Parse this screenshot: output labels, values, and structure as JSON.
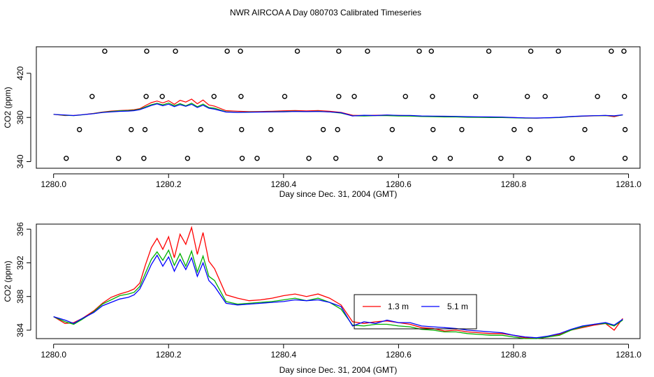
{
  "page_title": "NWR AIRCOA A  Day 080703  Calibrated Timeseries",
  "chart_data": [
    {
      "type": "scatter",
      "xlabel": "Day since Dec. 31, 2004 (GMT)",
      "ylabel": "CO2 (ppm)",
      "xlim": [
        1279.97,
        1281.02
      ],
      "ylim": [
        334,
        444
      ],
      "xticks": [
        1280.0,
        1280.2,
        1280.4,
        1280.6,
        1280.8,
        1281.0
      ],
      "xtick_labels": [
        "1280.0",
        "1280.2",
        "1280.4",
        "1280.6",
        "1280.8",
        "1281.0"
      ],
      "yticks": [
        340,
        380,
        420
      ],
      "ytick_labels": [
        "340",
        "380",
        "420"
      ],
      "markers": {
        "y": [
          343,
          369,
          399,
          440
        ],
        "x": [
          [
            1280.022,
            1280.113,
            1280.157,
            1280.233,
            1280.328,
            1280.354,
            1280.444,
            1280.491,
            1280.568,
            1280.663,
            1280.69,
            1280.778,
            1280.826,
            1280.902,
            1280.994
          ],
          [
            1280.045,
            1280.135,
            1280.159,
            1280.256,
            1280.327,
            1280.378,
            1280.469,
            1280.494,
            1280.589,
            1280.66,
            1280.71,
            1280.801,
            1280.829,
            1280.924,
            1280.994
          ],
          [
            1280.067,
            1280.161,
            1280.189,
            1280.279,
            1280.326,
            1280.402,
            1280.496,
            1280.523,
            1280.612,
            1280.659,
            1280.734,
            1280.824,
            1280.855,
            1280.946,
            1280.993
          ],
          [
            1280.089,
            1280.162,
            1280.212,
            1280.302,
            1280.325,
            1280.424,
            1280.496,
            1280.546,
            1280.636,
            1280.657,
            1280.757,
            1280.83,
            1280.878,
            1280.97,
            1280.992
          ]
        ]
      },
      "series": [
        {
          "name": "1.3 m",
          "color": "#ff0000"
        },
        {
          "name": "5.1 m",
          "color": "#0000ff"
        }
      ]
    },
    {
      "type": "line",
      "xlabel": "Day since Dec. 31, 2004 (GMT)",
      "ylabel": "CO2 (ppm)",
      "xlim": [
        1279.97,
        1281.02
      ],
      "ylim": [
        383.0,
        396.6
      ],
      "xticks": [
        1280.0,
        1280.2,
        1280.4,
        1280.6,
        1280.8,
        1281.0
      ],
      "xtick_labels": [
        "1280.0",
        "1280.2",
        "1280.4",
        "1280.6",
        "1280.8",
        "1281.0"
      ],
      "yticks": [
        384,
        388,
        392,
        396
      ],
      "ytick_labels": [
        "384",
        "388",
        "392",
        "396"
      ],
      "legend": {
        "position": "right-center",
        "entries": [
          {
            "name": "1.3 m",
            "color": "#ff0000"
          },
          {
            "name": "5.1 m",
            "color": "#0000ff"
          }
        ]
      },
      "series": [
        {
          "name": "1.3 m",
          "color": "#ff0000",
          "x": [
            1280.0,
            1280.02,
            1280.035,
            1280.05,
            1280.07,
            1280.085,
            1280.1,
            1280.115,
            1280.13,
            1280.14,
            1280.15,
            1280.16,
            1280.17,
            1280.18,
            1280.19,
            1280.2,
            1280.21,
            1280.22,
            1280.23,
            1280.24,
            1280.25,
            1280.26,
            1280.27,
            1280.28,
            1280.3,
            1280.32,
            1280.34,
            1280.36,
            1280.38,
            1280.4,
            1280.42,
            1280.44,
            1280.46,
            1280.48,
            1280.5,
            1280.52,
            1280.54,
            1280.56,
            1280.58,
            1280.6,
            1280.62,
            1280.64,
            1280.66,
            1280.68,
            1280.7,
            1280.72,
            1280.74,
            1280.76,
            1280.78,
            1280.8,
            1280.82,
            1280.84,
            1280.86,
            1280.88,
            1280.9,
            1280.92,
            1280.94,
            1280.96,
            1280.975,
            1280.99
          ],
          "y": [
            385.6,
            384.8,
            384.9,
            385.4,
            386.3,
            387.2,
            387.9,
            388.3,
            388.6,
            388.9,
            389.6,
            391.8,
            393.8,
            394.9,
            393.6,
            395.1,
            392.6,
            395.4,
            394.2,
            396.2,
            393.0,
            395.6,
            392.2,
            391.3,
            388.2,
            387.8,
            387.5,
            387.6,
            387.8,
            388.1,
            388.3,
            388.0,
            388.3,
            387.8,
            387.0,
            385.0,
            384.8,
            385.0,
            385.1,
            384.9,
            384.7,
            384.3,
            384.2,
            383.9,
            384.0,
            383.8,
            383.7,
            383.6,
            383.6,
            383.4,
            383.1,
            383.0,
            383.2,
            383.5,
            384.0,
            384.3,
            384.6,
            384.8,
            384.0,
            385.4
          ]
        },
        {
          "name": "green",
          "color": "#00b000",
          "x": [
            1280.0,
            1280.02,
            1280.035,
            1280.05,
            1280.07,
            1280.085,
            1280.1,
            1280.115,
            1280.13,
            1280.14,
            1280.15,
            1280.16,
            1280.17,
            1280.18,
            1280.19,
            1280.2,
            1280.21,
            1280.22,
            1280.23,
            1280.24,
            1280.25,
            1280.26,
            1280.27,
            1280.28,
            1280.3,
            1280.32,
            1280.34,
            1280.36,
            1280.38,
            1280.4,
            1280.42,
            1280.44,
            1280.46,
            1280.48,
            1280.5,
            1280.52,
            1280.54,
            1280.56,
            1280.58,
            1280.6,
            1280.62,
            1280.64,
            1280.66,
            1280.68,
            1280.7,
            1280.72,
            1280.74,
            1280.76,
            1280.78,
            1280.8,
            1280.82,
            1280.84,
            1280.86,
            1280.88,
            1280.9,
            1280.92,
            1280.94,
            1280.96,
            1280.975,
            1280.99
          ],
          "y": [
            385.6,
            385.0,
            384.7,
            385.3,
            386.2,
            387.1,
            387.6,
            388.1,
            388.3,
            388.5,
            389.2,
            390.8,
            392.4,
            393.3,
            392.3,
            393.5,
            391.7,
            393.1,
            391.6,
            393.4,
            390.9,
            392.8,
            390.4,
            389.9,
            387.4,
            387.1,
            387.2,
            387.3,
            387.4,
            387.6,
            387.8,
            387.5,
            387.8,
            387.3,
            386.5,
            384.6,
            384.5,
            384.7,
            384.7,
            384.5,
            384.4,
            384.1,
            384.0,
            383.8,
            383.8,
            383.6,
            383.5,
            383.4,
            383.4,
            383.2,
            383.0,
            383.0,
            383.2,
            383.4,
            384.0,
            384.4,
            384.7,
            384.8,
            384.5,
            385.2
          ]
        },
        {
          "name": "5.1 m",
          "color": "#0000ff",
          "x": [
            1280.0,
            1280.02,
            1280.035,
            1280.05,
            1280.07,
            1280.085,
            1280.1,
            1280.115,
            1280.13,
            1280.14,
            1280.15,
            1280.16,
            1280.17,
            1280.18,
            1280.19,
            1280.2,
            1280.21,
            1280.22,
            1280.23,
            1280.24,
            1280.25,
            1280.26,
            1280.27,
            1280.28,
            1280.3,
            1280.32,
            1280.34,
            1280.36,
            1280.38,
            1280.4,
            1280.42,
            1280.44,
            1280.46,
            1280.48,
            1280.5,
            1280.52,
            1280.54,
            1280.56,
            1280.58,
            1280.6,
            1280.62,
            1280.64,
            1280.66,
            1280.68,
            1280.7,
            1280.72,
            1280.74,
            1280.76,
            1280.78,
            1280.8,
            1280.82,
            1280.84,
            1280.86,
            1280.88,
            1280.9,
            1280.92,
            1280.94,
            1280.96,
            1280.975,
            1280.99
          ],
          "y": [
            385.6,
            385.2,
            384.8,
            385.4,
            386.1,
            386.9,
            387.3,
            387.7,
            387.9,
            388.2,
            388.9,
            390.3,
            391.8,
            392.9,
            391.6,
            392.7,
            391.0,
            392.4,
            391.2,
            392.6,
            390.4,
            392.0,
            389.9,
            389.2,
            387.2,
            387.0,
            387.1,
            387.2,
            387.3,
            387.4,
            387.6,
            387.5,
            387.6,
            387.3,
            386.8,
            384.5,
            385.0,
            384.8,
            385.2,
            384.9,
            384.9,
            384.5,
            384.4,
            384.3,
            384.2,
            384.0,
            383.9,
            383.8,
            383.7,
            383.4,
            383.2,
            383.1,
            383.3,
            383.6,
            384.1,
            384.5,
            384.7,
            384.9,
            384.6,
            385.3
          ]
        }
      ]
    }
  ]
}
